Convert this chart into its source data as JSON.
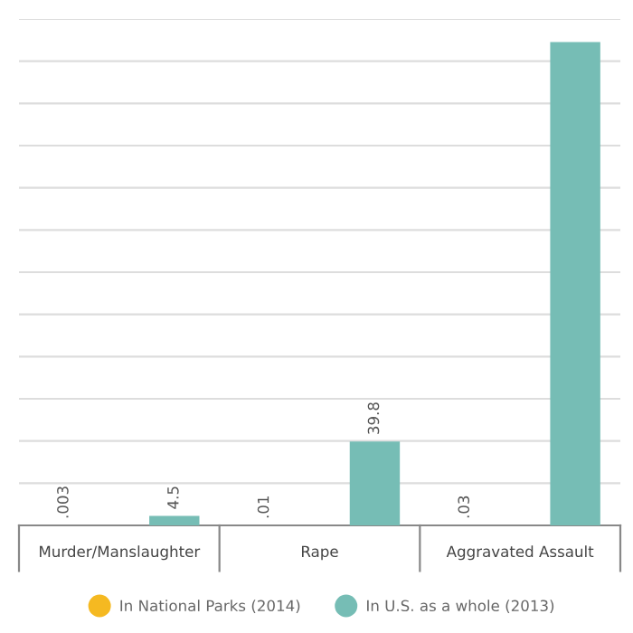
{
  "chart_data": {
    "type": "bar",
    "categories": [
      "Murder/Manslaughter",
      "Rape",
      "Aggravated Assault"
    ],
    "series": [
      {
        "name": "In National Parks (2014)",
        "color": "#f5b921",
        "values": [
          0.003,
          0.01,
          0.03
        ],
        "value_labels": [
          ".003",
          ".01",
          ".03"
        ]
      },
      {
        "name": "In U.S. as a whole (2013)",
        "color": "#76bdb5",
        "values": [
          4.5,
          39.8,
          229.1
        ],
        "value_labels": [
          "4.5",
          "39.8",
          null
        ]
      }
    ],
    "ylim": [
      0,
      240
    ],
    "yticks": [
      {
        "value": 20,
        "label": null
      },
      {
        "value": 40,
        "label": null
      },
      {
        "value": 60,
        "label": null
      },
      {
        "value": 80,
        "label": null
      },
      {
        "value": 100,
        "label": null
      },
      {
        "value": 120,
        "label": null
      },
      {
        "value": 140,
        "label": null
      },
      {
        "value": 160,
        "label": null
      },
      {
        "value": 180,
        "label": null
      },
      {
        "value": 200,
        "label": null
      },
      {
        "value": 220,
        "label": null
      },
      {
        "value": 240,
        "label": null
      }
    ],
    "tick_labels": "x",
    "grid": "y",
    "legend": "bottom"
  }
}
